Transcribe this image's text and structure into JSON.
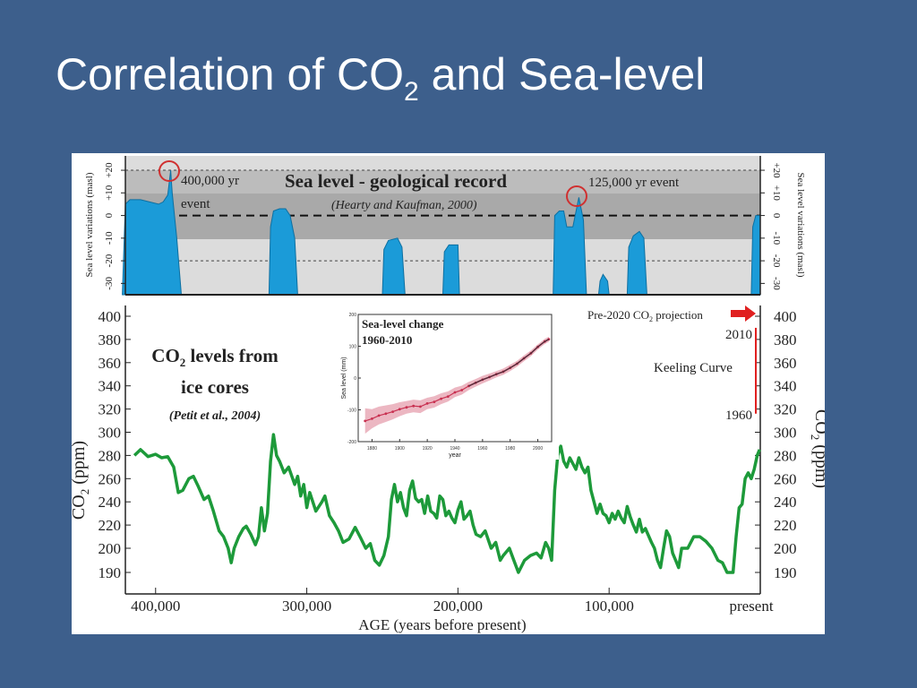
{
  "slide": {
    "title_pre": "Correlation of CO",
    "title_sub": "2",
    "title_post": " and Sea-level"
  },
  "chart_data": [
    {
      "type": "area",
      "title": "Sea level - geological record",
      "subtitle": "(Hearty and Kaufman, 2000)",
      "ylabel": "Sea level variations (masl)",
      "ylabel_right": "Sea level variations (masl)",
      "y_ticks": [
        "+20",
        "+10",
        "0",
        "-10",
        "-20",
        "-30"
      ],
      "y_tick_values": [
        20,
        10,
        0,
        -10,
        -20,
        -30
      ],
      "ylim": [
        -35,
        22
      ],
      "xlim": [
        420000,
        0
      ],
      "fill_color": "#1b9bd8",
      "annotations": [
        {
          "label_line1": "400,000 yr",
          "label_line2": "event",
          "age": 390000,
          "sea_level": 20
        },
        {
          "label_line1": "125,000 yr event",
          "age": 120000,
          "sea_level": 8
        }
      ],
      "points": [
        [
          422000,
          -35
        ],
        [
          420000,
          5
        ],
        [
          417000,
          7
        ],
        [
          410000,
          7
        ],
        [
          404000,
          6
        ],
        [
          398000,
          5
        ],
        [
          395000,
          6
        ],
        [
          392000,
          9
        ],
        [
          390000,
          20
        ],
        [
          389000,
          10
        ],
        [
          386000,
          -10
        ],
        [
          383000,
          -35
        ],
        [
          325000,
          -35
        ],
        [
          324000,
          -5
        ],
        [
          322000,
          2
        ],
        [
          318000,
          3
        ],
        [
          314000,
          3
        ],
        [
          311000,
          0
        ],
        [
          308000,
          -10
        ],
        [
          306000,
          -35
        ],
        [
          250000,
          -35
        ],
        [
          249000,
          -15
        ],
        [
          246000,
          -11
        ],
        [
          240000,
          -10
        ],
        [
          237000,
          -14
        ],
        [
          235000,
          -35
        ],
        [
          210000,
          -35
        ],
        [
          209000,
          -16
        ],
        [
          206000,
          -13
        ],
        [
          200000,
          -13
        ],
        [
          199000,
          -35
        ],
        [
          137000,
          -35
        ],
        [
          136000,
          0
        ],
        [
          133000,
          2
        ],
        [
          130000,
          2
        ],
        [
          128000,
          -5
        ],
        [
          124000,
          -5
        ],
        [
          120000,
          8
        ],
        [
          117000,
          -2
        ],
        [
          115000,
          -35
        ],
        [
          107000,
          -35
        ],
        [
          106000,
          -29
        ],
        [
          104000,
          -26
        ],
        [
          101000,
          -29
        ],
        [
          100000,
          -35
        ],
        [
          88000,
          -35
        ],
        [
          87000,
          -14
        ],
        [
          84000,
          -9
        ],
        [
          80000,
          -7
        ],
        [
          77000,
          -10
        ],
        [
          75000,
          -35
        ],
        [
          6000,
          -35
        ],
        [
          5000,
          -5
        ],
        [
          3000,
          0
        ],
        [
          0,
          0
        ],
        [
          0,
          -35
        ]
      ]
    },
    {
      "type": "line",
      "title": "CO₂ levels from ice cores",
      "title_line1_pre": "CO",
      "title_line1_sub": "2",
      "title_line1_post": " levels from",
      "title_line2": "ice cores",
      "subtitle": "(Petit et al., 2004)",
      "xlabel": "AGE (years before present)",
      "ylabel": "CO₂ (ppm)",
      "ylabel_pre": "CO",
      "ylabel_sub": "2",
      "ylabel_post": " (ppm)",
      "x_ticks": [
        "400,000",
        "300,000",
        "200,000",
        "100,000",
        "present"
      ],
      "x_tick_values": [
        400000,
        300000,
        200000,
        100000,
        0
      ],
      "y_ticks": [
        "400",
        "380",
        "360",
        "340",
        "320",
        "300",
        "280",
        "260",
        "240",
        "220",
        "200",
        "190"
      ],
      "y_tick_values": [
        400,
        380,
        360,
        340,
        320,
        300,
        280,
        260,
        240,
        220,
        200,
        190
      ],
      "xlim": [
        420000,
        0
      ],
      "ylim": [
        180,
        405
      ],
      "line_color": "#1d9a3a",
      "keeling_curve": {
        "label": "Keeling Curve",
        "start_label": "1960",
        "end_label": "2010",
        "start_value": 316,
        "end_value": 390,
        "color": "#e02020"
      },
      "projection": {
        "label_pre": "Pre-2020 CO",
        "label_sub": "2",
        "label_post": " projection",
        "value": 400,
        "arrow_color": "#e02020"
      },
      "points": [
        [
          414000,
          280
        ],
        [
          410000,
          285
        ],
        [
          405000,
          279
        ],
        [
          400000,
          281
        ],
        [
          396000,
          278
        ],
        [
          392000,
          279
        ],
        [
          388000,
          270
        ],
        [
          385000,
          248
        ],
        [
          382000,
          250
        ],
        [
          378000,
          260
        ],
        [
          375000,
          262
        ],
        [
          372000,
          254
        ],
        [
          368000,
          242
        ],
        [
          365000,
          245
        ],
        [
          362000,
          233
        ],
        [
          358000,
          215
        ],
        [
          355000,
          210
        ],
        [
          352000,
          200
        ],
        [
          350000,
          194
        ],
        [
          348000,
          200
        ],
        [
          345000,
          210
        ],
        [
          342000,
          217
        ],
        [
          340000,
          219
        ],
        [
          337000,
          212
        ],
        [
          334000,
          203
        ],
        [
          332000,
          210
        ],
        [
          330000,
          235
        ],
        [
          328000,
          215
        ],
        [
          326000,
          230
        ],
        [
          324000,
          275
        ],
        [
          322000,
          298
        ],
        [
          320000,
          280
        ],
        [
          318000,
          275
        ],
        [
          315000,
          265
        ],
        [
          312000,
          270
        ],
        [
          308000,
          255
        ],
        [
          306000,
          262
        ],
        [
          304000,
          245
        ],
        [
          302000,
          255
        ],
        [
          300000,
          235
        ],
        [
          298000,
          248
        ],
        [
          294000,
          232
        ],
        [
          290000,
          240
        ],
        [
          288000,
          245
        ],
        [
          285000,
          228
        ],
        [
          282000,
          222
        ],
        [
          279000,
          215
        ],
        [
          276000,
          205
        ],
        [
          272000,
          208
        ],
        [
          268000,
          218
        ],
        [
          264000,
          208
        ],
        [
          261000,
          200
        ],
        [
          258000,
          204
        ],
        [
          255000,
          195
        ],
        [
          252000,
          193
        ],
        [
          249000,
          197
        ],
        [
          246000,
          210
        ],
        [
          244000,
          242
        ],
        [
          242000,
          255
        ],
        [
          240000,
          240
        ],
        [
          238000,
          248
        ],
        [
          236000,
          235
        ],
        [
          234000,
          228
        ],
        [
          232000,
          250
        ],
        [
          230000,
          258
        ],
        [
          228000,
          243
        ],
        [
          226000,
          240
        ],
        [
          224000,
          242
        ],
        [
          222000,
          230
        ],
        [
          220000,
          245
        ],
        [
          218000,
          232
        ],
        [
          216000,
          230
        ],
        [
          214000,
          226
        ],
        [
          212000,
          245
        ],
        [
          210000,
          242
        ],
        [
          208000,
          228
        ],
        [
          206000,
          232
        ],
        [
          204000,
          226
        ],
        [
          202000,
          222
        ],
        [
          200000,
          233
        ],
        [
          198000,
          240
        ],
        [
          196000,
          225
        ],
        [
          194000,
          228
        ],
        [
          192000,
          232
        ],
        [
          190000,
          220
        ],
        [
          188000,
          212
        ],
        [
          185000,
          210
        ],
        [
          182000,
          215
        ],
        [
          178000,
          200
        ],
        [
          175000,
          205
        ],
        [
          172000,
          195
        ],
        [
          170000,
          197
        ],
        [
          166000,
          200
        ],
        [
          163000,
          195
        ],
        [
          160000,
          190
        ],
        [
          156000,
          195
        ],
        [
          152000,
          197
        ],
        [
          148000,
          198
        ],
        [
          145000,
          196
        ],
        [
          142000,
          205
        ],
        [
          140000,
          200
        ],
        [
          138000,
          195
        ],
        [
          136000,
          250
        ],
        [
          134000,
          280
        ],
        [
          132000,
          288
        ],
        [
          130000,
          275
        ],
        [
          128000,
          270
        ],
        [
          126000,
          278
        ],
        [
          124000,
          273
        ],
        [
          122000,
          268
        ],
        [
          120000,
          278
        ],
        [
          118000,
          270
        ],
        [
          116000,
          265
        ],
        [
          114000,
          270
        ],
        [
          112000,
          250
        ],
        [
          110000,
          240
        ],
        [
          108000,
          230
        ],
        [
          106000,
          238
        ],
        [
          104000,
          230
        ],
        [
          102000,
          228
        ],
        [
          100000,
          222
        ],
        [
          98000,
          230
        ],
        [
          96000,
          225
        ],
        [
          94000,
          232
        ],
        [
          92000,
          226
        ],
        [
          90000,
          222
        ],
        [
          88000,
          236
        ],
        [
          86000,
          227
        ],
        [
          84000,
          220
        ],
        [
          82000,
          214
        ],
        [
          80000,
          225
        ],
        [
          78000,
          214
        ],
        [
          76000,
          217
        ],
        [
          72000,
          205
        ],
        [
          70000,
          200
        ],
        [
          68000,
          195
        ],
        [
          66000,
          192
        ],
        [
          64000,
          200
        ],
        [
          62000,
          215
        ],
        [
          60000,
          210
        ],
        [
          58000,
          198
        ],
        [
          56000,
          195
        ],
        [
          54000,
          192
        ],
        [
          52000,
          200
        ],
        [
          48000,
          200
        ],
        [
          44000,
          210
        ],
        [
          40000,
          210
        ],
        [
          36000,
          206
        ],
        [
          32000,
          200
        ],
        [
          28000,
          195
        ],
        [
          25000,
          194
        ],
        [
          22000,
          190
        ],
        [
          18000,
          190
        ],
        [
          16000,
          210
        ],
        [
          14000,
          235
        ],
        [
          12000,
          238
        ],
        [
          10000,
          260
        ],
        [
          8000,
          265
        ],
        [
          6000,
          260
        ],
        [
          4000,
          268
        ],
        [
          2000,
          280
        ],
        [
          500,
          285
        ]
      ]
    },
    {
      "type": "scatter",
      "title_line1": "Sea-level change",
      "title_line2": "1960-2010",
      "xlabel": "year",
      "ylabel": "Sea level (mm)",
      "x_ticks": [
        "1880",
        "1900",
        "1920",
        "1940",
        "1960",
        "1980",
        "2000"
      ],
      "x_tick_values": [
        1880,
        1900,
        1920,
        1940,
        1960,
        1980,
        2000
      ],
      "y_ticks": [
        "200",
        "100",
        "0",
        "-100",
        "-200"
      ],
      "y_tick_values": [
        200,
        100,
        0,
        -100,
        -200
      ],
      "xlim": [
        1870,
        2010
      ],
      "ylim": [
        -200,
        200
      ],
      "color": "#c83050",
      "points": [
        [
          1875,
          -135
        ],
        [
          1880,
          -128
        ],
        [
          1885,
          -118
        ],
        [
          1890,
          -112
        ],
        [
          1895,
          -106
        ],
        [
          1900,
          -98
        ],
        [
          1905,
          -92
        ],
        [
          1910,
          -88
        ],
        [
          1915,
          -90
        ],
        [
          1920,
          -80
        ],
        [
          1925,
          -75
        ],
        [
          1930,
          -65
        ],
        [
          1935,
          -58
        ],
        [
          1940,
          -45
        ],
        [
          1945,
          -38
        ],
        [
          1950,
          -25
        ],
        [
          1955,
          -15
        ],
        [
          1960,
          -5
        ],
        [
          1965,
          3
        ],
        [
          1970,
          12
        ],
        [
          1975,
          20
        ],
        [
          1980,
          32
        ],
        [
          1985,
          45
        ],
        [
          1990,
          62
        ],
        [
          1995,
          78
        ],
        [
          2000,
          98
        ],
        [
          2005,
          115
        ],
        [
          2008,
          122
        ]
      ],
      "band": [
        40,
        30,
        28,
        26,
        24,
        22,
        20,
        20,
        20,
        18,
        18,
        17,
        16,
        15,
        14,
        13,
        12,
        12,
        11,
        10,
        10,
        10,
        9,
        9,
        9,
        8,
        8,
        8
      ]
    }
  ]
}
